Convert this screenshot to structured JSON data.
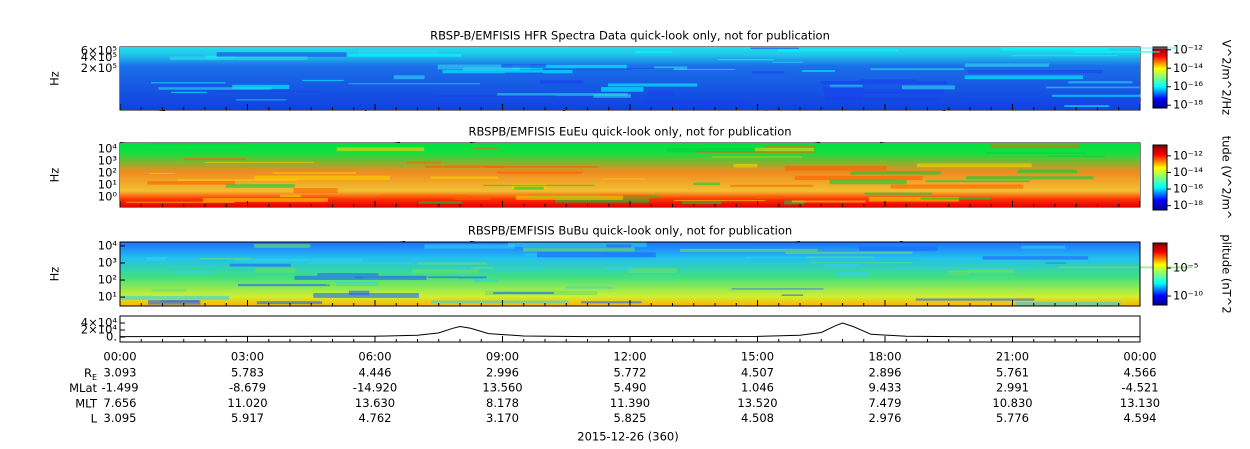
{
  "chart_data": [
    {
      "type": "spectrogram",
      "title": "RBSP-B/EMFISIS  HFR Spectra Data quick-look only, not for publication",
      "ylabel": "Hz",
      "log_y": true,
      "ylim": [
        15000,
        780000
      ],
      "yticks": [
        {
          "value": 200000,
          "label": "2×10⁵"
        },
        {
          "value": 400000,
          "label": "4×10⁵"
        },
        {
          "value": 600000,
          "label": "6×10⁵"
        }
      ],
      "colorbar_label": "V^2/m^2/Hz",
      "clim": [
        5e-19,
        2e-12
      ],
      "cticks": [
        {
          "value": 1e-12,
          "label": "10⁻¹²"
        },
        {
          "value": 1e-14,
          "label": "10⁻¹⁴"
        },
        {
          "value": 1e-16,
          "label": "10⁻¹⁶"
        },
        {
          "value": 1e-18,
          "label": "10⁻¹⁸"
        }
      ]
    },
    {
      "type": "spectrogram",
      "title": "RBSPB/EMFISIS  EuEu quick-look only, not for publication",
      "ylabel": "Hz",
      "log_y": true,
      "ylim": [
        0.15,
        32000
      ],
      "yticks": [
        {
          "value": 1,
          "label": "10⁰"
        },
        {
          "value": 10,
          "label": "10¹"
        },
        {
          "value": 100,
          "label": "10²"
        },
        {
          "value": 1000,
          "label": "10³"
        },
        {
          "value": 10000,
          "label": "10⁴"
        }
      ],
      "colorbar_label": "tude (V^2/m^",
      "clim": [
        3e-19,
        2e-11
      ],
      "cticks": [
        {
          "value": 1e-12,
          "label": "10⁻¹²"
        },
        {
          "value": 1e-14,
          "label": "10⁻¹⁴"
        },
        {
          "value": 1e-16,
          "label": "10⁻¹⁶"
        },
        {
          "value": 1e-18,
          "label": "10⁻¹⁸"
        }
      ]
    },
    {
      "type": "spectrogram",
      "title": "RBSPB/EMFISIS  BuBu quick-look only, not for publication",
      "ylabel": "Hz",
      "log_y": true,
      "ylim": [
        3,
        17000
      ],
      "yticks": [
        {
          "value": 10,
          "label": "10¹"
        },
        {
          "value": 100,
          "label": "10²"
        },
        {
          "value": 1000,
          "label": "10³"
        },
        {
          "value": 10000,
          "label": "10⁴"
        }
      ],
      "colorbar_label": "plitude (nT^2",
      "clim": [
        2.5e-12,
        0.3
      ],
      "cticks": [
        {
          "value": 1e-05,
          "label": "10⁻⁵"
        },
        {
          "value": 1e-10,
          "label": "10⁻¹⁰"
        }
      ]
    },
    {
      "type": "line",
      "ylim": [
        -14000,
        60000
      ],
      "xlim": [
        0,
        24
      ],
      "yticks": [
        {
          "value": 0,
          "label": "0."
        },
        {
          "value": 20000,
          "label": "2×10⁴"
        },
        {
          "value": 40000,
          "label": "4×10⁴"
        }
      ],
      "xticks": [
        {
          "value": 0,
          "label": "00:00"
        },
        {
          "value": 3,
          "label": "03:00"
        },
        {
          "value": 6,
          "label": "06:00"
        },
        {
          "value": 9,
          "label": "09:00"
        },
        {
          "value": 12,
          "label": "12:00"
        },
        {
          "value": 15,
          "label": "15:00"
        },
        {
          "value": 18,
          "label": "18:00"
        },
        {
          "value": 21,
          "label": "21:00"
        },
        {
          "value": 24,
          "label": "00:00"
        }
      ],
      "x": [
        0,
        6,
        7,
        7.5,
        7.83,
        8,
        8.25,
        8.67,
        9.5,
        11,
        15,
        16,
        16.5,
        16.83,
        17,
        17.25,
        17.67,
        18.5,
        20,
        24
      ],
      "values": [
        1500,
        2500,
        5000,
        12000,
        25000,
        30000,
        25000,
        10000,
        3000,
        1500,
        2000,
        5000,
        13000,
        32000,
        40000,
        30000,
        8000,
        2500,
        1200,
        1000
      ],
      "color": "#000000"
    }
  ],
  "ephemeris": {
    "rows": [
      {
        "label": "R",
        "label_sub": "E",
        "values": [
          "3.093",
          "5.783",
          "4.446",
          "2.996",
          "5.772",
          "4.507",
          "2.896",
          "5.761",
          "4.566"
        ]
      },
      {
        "label": "MLat",
        "values": [
          "-1.499",
          "-8.679",
          "-14.920",
          "13.560",
          "5.490",
          "1.046",
          "9.433",
          "2.991",
          "-4.521"
        ]
      },
      {
        "label": "MLT",
        "values": [
          "7.656",
          "11.020",
          "13.630",
          "8.178",
          "11.390",
          "13.520",
          "7.479",
          "10.830",
          "13.130"
        ]
      },
      {
        "label": "L",
        "values": [
          "3.095",
          "5.917",
          "4.762",
          "3.170",
          "5.825",
          "4.508",
          "2.976",
          "5.776",
          "4.594"
        ]
      }
    ],
    "date_label": "2015-12-26 (360)"
  }
}
